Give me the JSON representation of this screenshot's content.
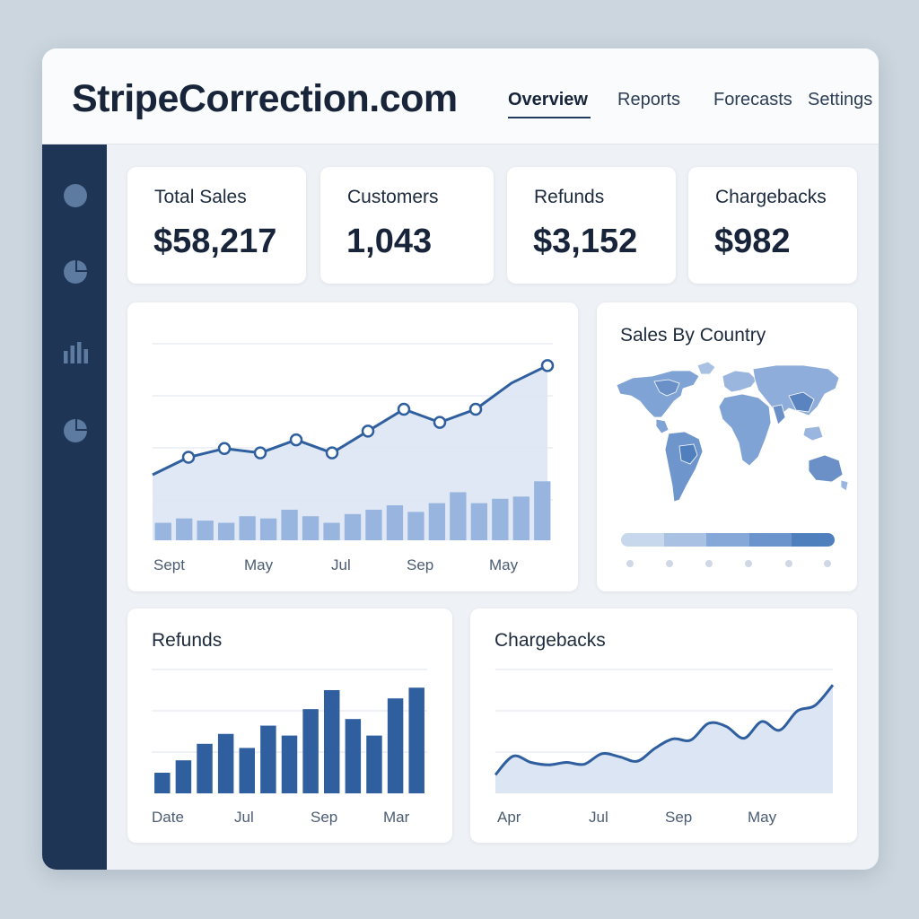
{
  "app": {
    "brand": "StripeCorrection.com",
    "accent_color": "#2f5f9e",
    "dark_color": "#1e3556"
  },
  "nav": {
    "items": [
      {
        "label": "Overview",
        "active": true
      },
      {
        "label": "Reports",
        "active": false
      },
      {
        "label": "Forecasts",
        "active": false
      },
      {
        "label": "Settings",
        "active": false
      }
    ]
  },
  "sidebar": {
    "icons": [
      "circle-icon",
      "pie-chart-icon",
      "bar-chart-icon",
      "pie-chart-icon"
    ]
  },
  "stats": [
    {
      "label": "Total Sales",
      "value": "$58,217"
    },
    {
      "label": "Customers",
      "value": "1,043"
    },
    {
      "label": "Refunds",
      "value": "$3,152"
    },
    {
      "label": "Chargebacks",
      "value": "$982"
    }
  ],
  "sales_chart": {
    "x_ticks": [
      "Sept",
      "May",
      "Jul",
      "Sep",
      "May"
    ]
  },
  "country": {
    "title": "Sales By Country",
    "legend_colors": [
      "#c7d7ec",
      "#a9c2e4",
      "#86a8d8",
      "#6b94cc",
      "#4f7fbd"
    ]
  },
  "refunds_panel": {
    "title": "Refunds",
    "x_ticks": [
      "Date",
      "Jul",
      "Sep",
      "Mar"
    ]
  },
  "chargebacks_panel": {
    "title": "Chargebacks",
    "x_ticks": [
      "Apr",
      "Jul",
      "Sep",
      "May"
    ]
  },
  "chart_data": [
    {
      "type": "line",
      "title": "",
      "series": [
        {
          "values": [
            15,
            19,
            21,
            20,
            23,
            20,
            25,
            30,
            27,
            30,
            36,
            40
          ]
        },
        {
          "values": [
            4,
            5,
            4.5,
            4,
            5.5,
            5,
            7,
            5.5,
            4,
            6,
            7,
            8,
            6.5,
            8.5,
            11,
            8.5,
            9.5,
            10,
            13.5
          ]
        }
      ],
      "ylim": [
        0,
        45
      ]
    },
    {
      "type": "bar",
      "title": "Refunds",
      "values": [
        2.5,
        4,
        6,
        7.2,
        5.5,
        8.2,
        7,
        10.2,
        12.5,
        9,
        7,
        11.5,
        12.8
      ],
      "ylim": [
        0,
        15
      ]
    },
    {
      "type": "area",
      "title": "Chargebacks",
      "values": [
        3,
        6,
        5,
        4.6,
        5,
        4.7,
        6.4,
        5.9,
        5.2,
        7.3,
        8.8,
        8.6,
        11.3,
        10.8,
        8.9,
        11.6,
        10.2,
        13.3,
        14.2,
        17.5
      ],
      "ylim": [
        0,
        20
      ]
    }
  ]
}
